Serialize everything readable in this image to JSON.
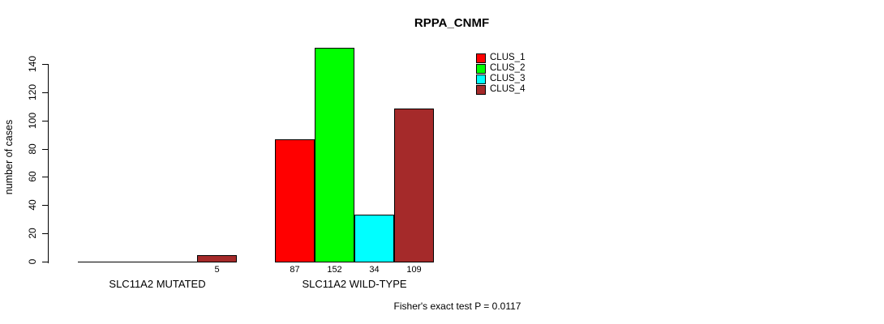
{
  "chart_data": {
    "type": "bar",
    "title": "RPPA_CNMF",
    "ylabel": "number of cases",
    "xlabel": "",
    "categories": [
      "SLC11A2 MUTATED",
      "SLC11A2 WILD-TYPE"
    ],
    "series": [
      {
        "name": "CLUS_1",
        "color": "#ff0000",
        "values": [
          0,
          87
        ]
      },
      {
        "name": "CLUS_2",
        "color": "#00ff00",
        "values": [
          0,
          152
        ]
      },
      {
        "name": "CLUS_3",
        "color": "#00ffff",
        "values": [
          0,
          34
        ]
      },
      {
        "name": "CLUS_4",
        "color": "#a52a2a",
        "values": [
          5,
          109
        ]
      }
    ],
    "y_ticks": [
      0,
      20,
      40,
      60,
      80,
      100,
      120,
      140
    ],
    "ylim": [
      0,
      152
    ],
    "grid": false,
    "bar_borders": "#000000",
    "value_labels_shown_for_nonzero_bars": true,
    "legend_position": "top-right",
    "annotation": "Fisher's exact test P = 0.0117"
  }
}
